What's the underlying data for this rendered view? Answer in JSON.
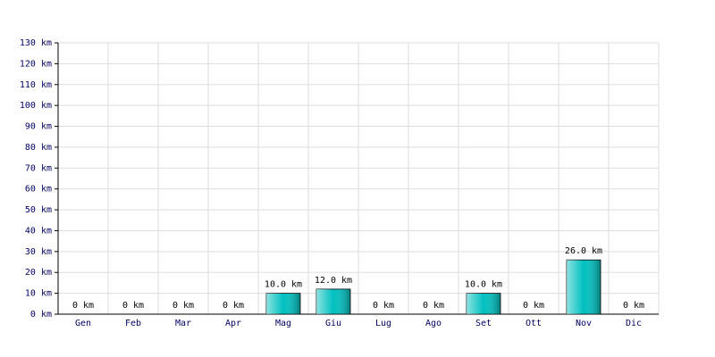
{
  "chart_data": {
    "type": "bar",
    "categories": [
      "Gen",
      "Feb",
      "Mar",
      "Apr",
      "Mag",
      "Giu",
      "Lug",
      "Ago",
      "Set",
      "Ott",
      "Nov",
      "Dic"
    ],
    "values": [
      0,
      0,
      0,
      0,
      10,
      12,
      0,
      0,
      10,
      0,
      26,
      0
    ],
    "value_labels": [
      "0 km",
      "0 km",
      "0 km",
      "0 km",
      "10.0 km",
      "12.0 km",
      "0 km",
      "0 km",
      "10.0 km",
      "0 km",
      "26.0 km",
      "0 km"
    ],
    "color": "#00c0c0",
    "ylim": [
      0,
      130
    ],
    "yticks": [
      {
        "value": 0,
        "label": "0 km"
      },
      {
        "value": 10,
        "label": "10 km"
      },
      {
        "value": 20,
        "label": "20 km"
      },
      {
        "value": 30,
        "label": "30 km"
      },
      {
        "value": 40,
        "label": "40 km"
      },
      {
        "value": 50,
        "label": "50 km"
      },
      {
        "value": 60,
        "label": "60 km"
      },
      {
        "value": 70,
        "label": "70 km"
      },
      {
        "value": 80,
        "label": "80 km"
      },
      {
        "value": 90,
        "label": "90 km"
      },
      {
        "value": 100,
        "label": "100 km"
      },
      {
        "value": 110,
        "label": "110 km"
      },
      {
        "value": 120,
        "label": "120 km"
      },
      {
        "value": 130,
        "label": "130 km"
      }
    ],
    "grid": true
  }
}
